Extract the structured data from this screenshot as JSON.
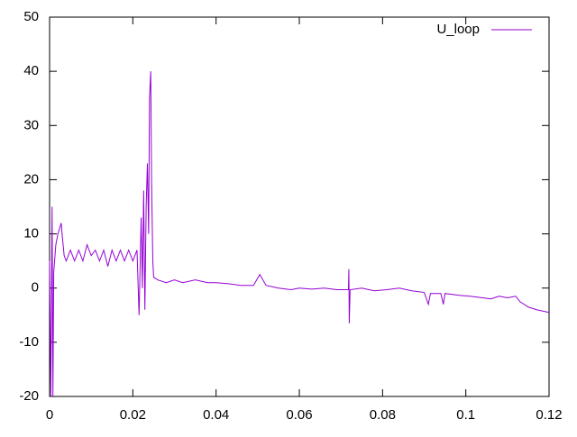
{
  "chart_data": {
    "type": "line",
    "xlim": [
      0,
      0.12
    ],
    "xticks": [
      0,
      0.02,
      0.04,
      0.06,
      0.08,
      0.1,
      0.12
    ],
    "ylim": [
      -20,
      50
    ],
    "yticks": [
      -20,
      -10,
      0,
      10,
      20,
      30,
      40,
      50
    ],
    "legend": "top-right",
    "series": [
      {
        "name": "U_loop",
        "color": "#9400d3",
        "x": [
          0,
          0.0003,
          0.0006,
          0.0008,
          0.001,
          0.0015,
          0.002,
          0.0028,
          0.003,
          0.0035,
          0.004,
          0.005,
          0.006,
          0.007,
          0.008,
          0.009,
          0.01,
          0.011,
          0.012,
          0.013,
          0.014,
          0.015,
          0.016,
          0.017,
          0.018,
          0.019,
          0.02,
          0.021,
          0.0215,
          0.022,
          0.0223,
          0.0226,
          0.0229,
          0.0232,
          0.0235,
          0.0238,
          0.024,
          0.0243,
          0.0245,
          0.0248,
          0.025,
          0.026,
          0.028,
          0.03,
          0.032,
          0.035,
          0.038,
          0.04,
          0.043,
          0.046,
          0.049,
          0.0505,
          0.052,
          0.055,
          0.058,
          0.06,
          0.063,
          0.066,
          0.069,
          0.0718,
          0.0719,
          0.072,
          0.0722,
          0.075,
          0.078,
          0.081,
          0.084,
          0.087,
          0.09,
          0.091,
          0.0915,
          0.094,
          0.0946,
          0.095,
          0.098,
          0.101,
          0.104,
          0.106,
          0.108,
          0.11,
          0.112,
          0.113,
          0.115,
          0.117,
          0.12
        ],
        "values": [
          5,
          -20,
          15,
          -20,
          3,
          8,
          10,
          12,
          10,
          6,
          5,
          7,
          5,
          7,
          5,
          8,
          6,
          7,
          5,
          7,
          4,
          7,
          5,
          7,
          5,
          7,
          5,
          7,
          -5,
          13,
          0,
          18,
          -4,
          15,
          23,
          10,
          35,
          40,
          20,
          5,
          2,
          1.5,
          1,
          1.5,
          1,
          1.5,
          1,
          1,
          0.8,
          0.5,
          0.5,
          2.5,
          0.5,
          0,
          -0.3,
          0,
          -0.2,
          0,
          -0.3,
          -0.3,
          3.5,
          -6.5,
          -0.3,
          0,
          -0.5,
          -0.3,
          0,
          -0.5,
          -0.8,
          -3,
          -1,
          -1,
          -3,
          -1,
          -1.3,
          -1.5,
          -1.8,
          -2,
          -1.5,
          -1.8,
          -1.5,
          -2.5,
          -3.5,
          -4,
          -4.5
        ]
      }
    ]
  }
}
